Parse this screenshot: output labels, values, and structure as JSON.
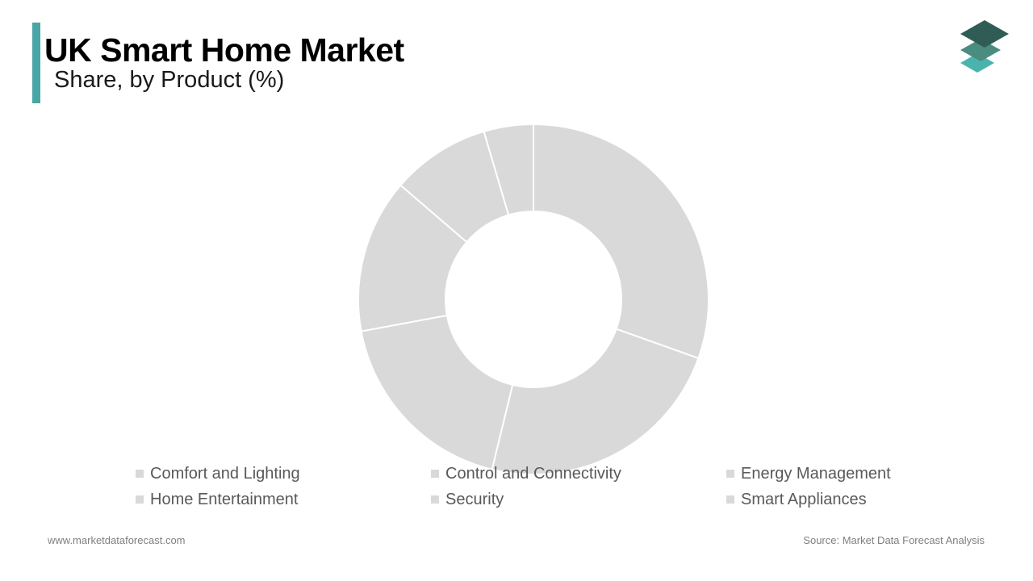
{
  "header": {
    "title": "UK Smart Home Market",
    "subtitle": "Share, by Product (%)"
  },
  "colors": {
    "accent": "#4aa6a6",
    "slice_fill": "#d9d9d9",
    "slice_border": "#ffffff",
    "legend_swatch": "#d9d9d9",
    "logo_dark": "#2f5d55",
    "logo_mid": "#4a8c80",
    "logo_light": "#4bb3ad"
  },
  "logo": {
    "icon": "stacked-layers-icon"
  },
  "chart_data": {
    "type": "pie",
    "donut": true,
    "title": "UK Smart Home Market",
    "subtitle": "Share, by Product (%)",
    "categories": [
      "Comfort and Lighting",
      "Control and Connectivity",
      "Energy Management",
      "Home Entertainment",
      "Security",
      "Smart Appliances"
    ],
    "values": [
      30,
      23,
      18,
      14,
      9,
      4.5
    ],
    "start_angle_deg": 0,
    "direction": "clockwise",
    "legend_position": "bottom"
  },
  "footer": {
    "website": "www.marketdataforecast.com",
    "source": "Source: Market Data Forecast Analysis"
  }
}
